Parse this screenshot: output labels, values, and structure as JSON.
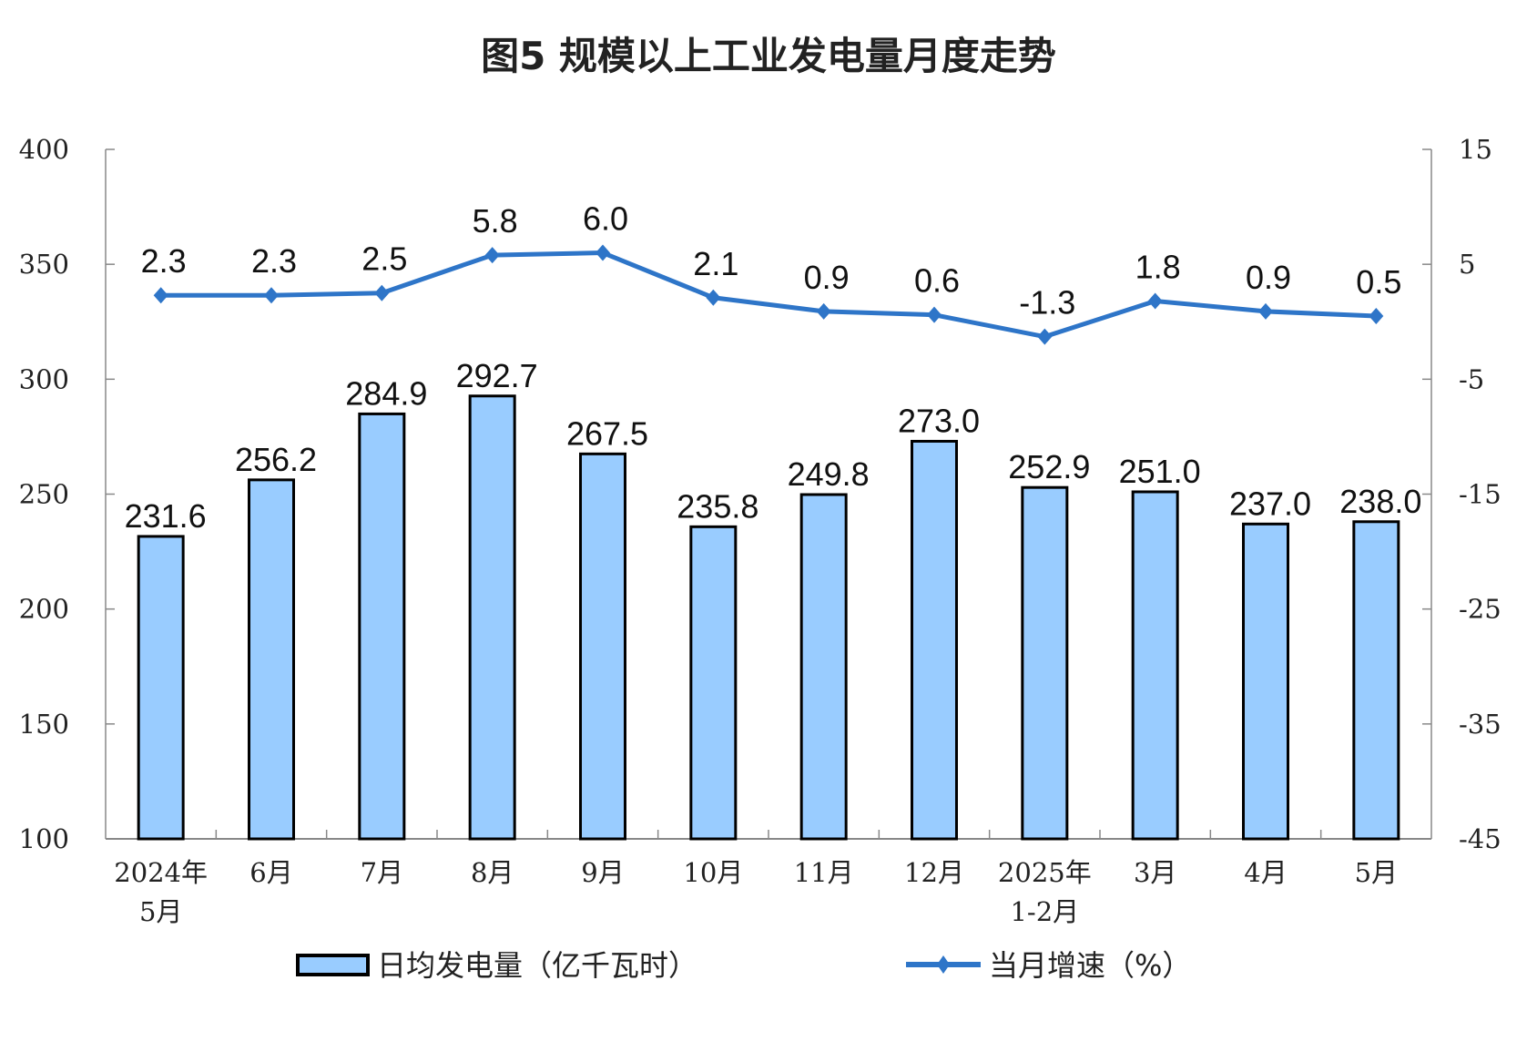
{
  "chart_data": {
    "type": "bar+line",
    "title": "图5  规模以上工业发电量月度走势",
    "categories": [
      [
        "2024年",
        "5月"
      ],
      [
        "6月"
      ],
      [
        "7月"
      ],
      [
        "8月"
      ],
      [
        "9月"
      ],
      [
        "10月"
      ],
      [
        "11月"
      ],
      [
        "12月"
      ],
      [
        "2025年",
        "1-2月"
      ],
      [
        "3月"
      ],
      [
        "4月"
      ],
      [
        "5月"
      ]
    ],
    "series": [
      {
        "name": "日均发电量（亿千瓦时）",
        "type": "bar",
        "axis": "left",
        "color": "#99CCFF",
        "values": [
          231.6,
          256.2,
          284.9,
          292.7,
          267.5,
          235.8,
          249.8,
          273.0,
          252.9,
          251.0,
          237.0,
          238.0
        ],
        "labels": [
          "231.6",
          "256.2",
          "284.9",
          "292.7",
          "267.5",
          "235.8",
          "249.8",
          "273.0",
          "252.9",
          "251.0",
          "237.0",
          "238.0"
        ]
      },
      {
        "name": "当月增速（%）",
        "type": "line",
        "axis": "right",
        "color": "#2E75C8",
        "values": [
          2.3,
          2.3,
          2.5,
          5.8,
          6.0,
          2.1,
          0.9,
          0.6,
          -1.3,
          1.8,
          0.9,
          0.5
        ],
        "labels": [
          "2.3",
          "2.3",
          "2.5",
          "5.8",
          "6.0",
          "2.1",
          "0.9",
          "0.6",
          "-1.3",
          "1.8",
          "0.9",
          "0.5"
        ]
      }
    ],
    "left_axis": {
      "ylim": [
        100,
        400
      ],
      "ticks": [
        "100",
        "150",
        "200",
        "250",
        "300",
        "350",
        "400"
      ]
    },
    "right_axis": {
      "ylim": [
        -45,
        15
      ],
      "ticks": [
        "-45",
        "-35",
        "-25",
        "-15",
        "-5",
        "5",
        "15"
      ]
    },
    "legend": "bottom",
    "grid": false
  }
}
